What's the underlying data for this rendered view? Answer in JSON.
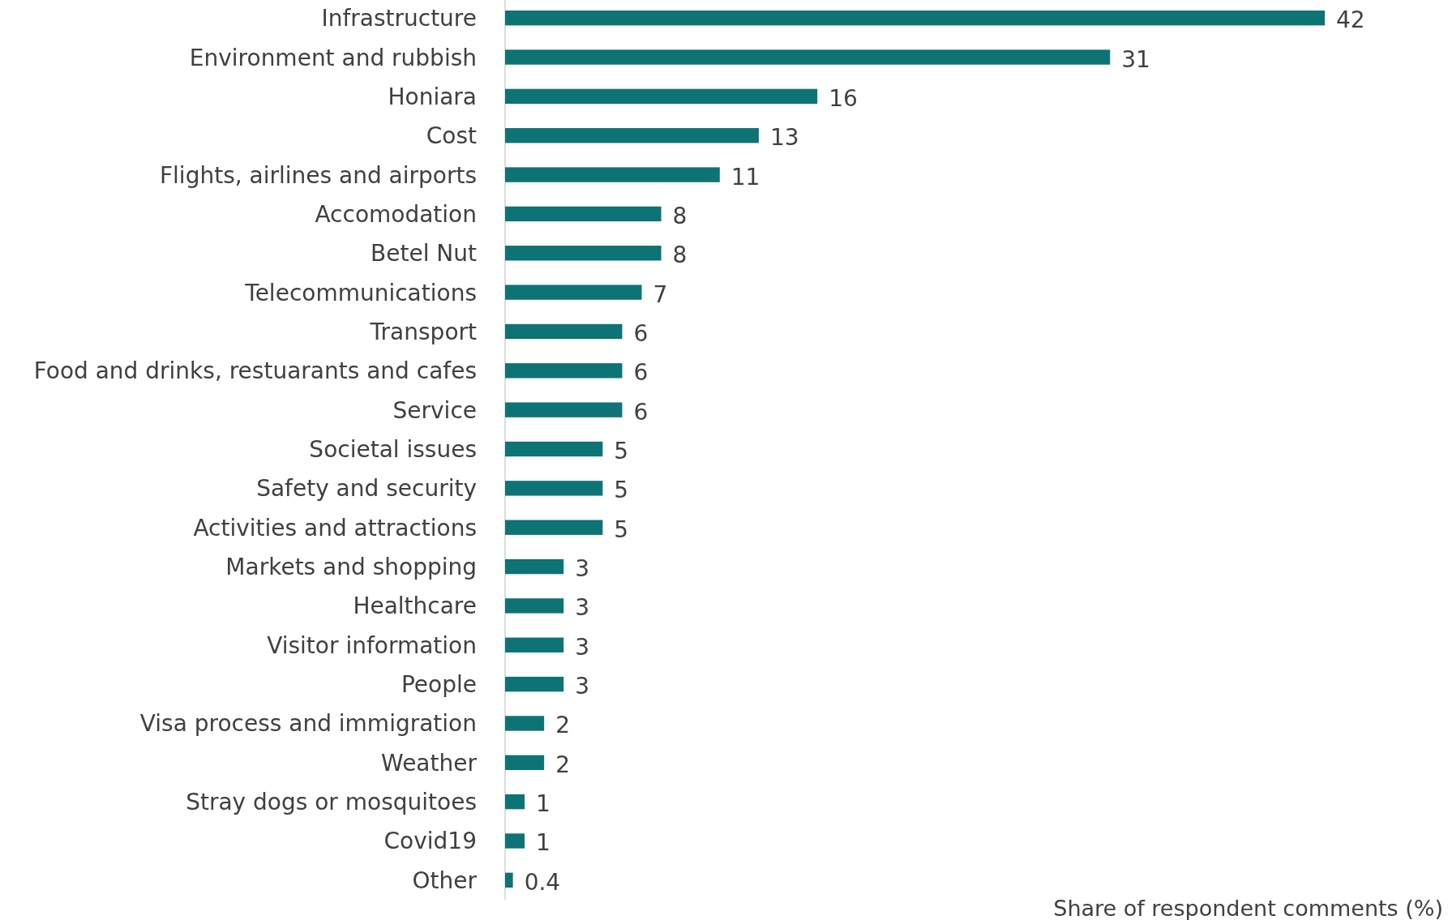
{
  "chart_data": {
    "type": "bar",
    "orientation": "horizontal",
    "xlabel": "Share of respondent comments (%)",
    "categories": [
      "Infrastructure",
      "Environment and rubbish",
      "Honiara",
      "Cost",
      "Flights, airlines and airports",
      "Accomodation",
      "Betel Nut",
      "Telecommunications",
      "Transport",
      "Food and drinks, restuarants and cafes",
      "Service",
      "Societal issues",
      "Safety and security",
      "Activities and attractions",
      "Markets and shopping",
      "Healthcare",
      "Visitor information",
      "People",
      "Visa process and immigration",
      "Weather",
      "Stray dogs or mosquitoes",
      "Covid19",
      "Other"
    ],
    "values": [
      42,
      31,
      16,
      13,
      11,
      8,
      8,
      7,
      6,
      6,
      6,
      5,
      5,
      5,
      3,
      3,
      3,
      3,
      2,
      2,
      1,
      1,
      0.4
    ],
    "color": "#0e7374",
    "data_labels": true,
    "grid": false
  }
}
